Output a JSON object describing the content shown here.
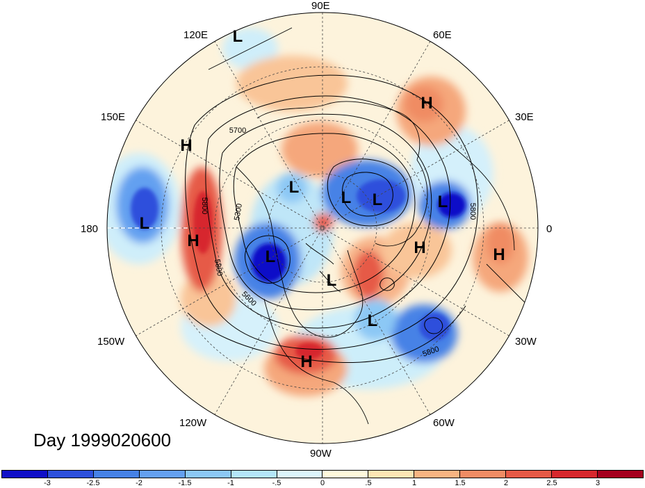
{
  "title": "Day 1999020600",
  "longitude_labels": [
    {
      "text": "90E"
    },
    {
      "text": "60E"
    },
    {
      "text": "30E"
    },
    {
      "text": "0"
    },
    {
      "text": "30W"
    },
    {
      "text": "60W"
    },
    {
      "text": "90W"
    },
    {
      "text": "120W"
    },
    {
      "text": "150W"
    },
    {
      "text": "180"
    },
    {
      "text": "150E"
    },
    {
      "text": "120E"
    }
  ],
  "pressure_centers": [
    {
      "type": "L"
    },
    {
      "type": "H"
    },
    {
      "type": "L"
    },
    {
      "type": "L"
    },
    {
      "type": "L"
    },
    {
      "type": "H"
    },
    {
      "type": "H"
    },
    {
      "type": "L"
    },
    {
      "type": "H"
    },
    {
      "type": "H"
    },
    {
      "type": "L"
    },
    {
      "type": "L"
    },
    {
      "type": "L"
    },
    {
      "type": "L"
    },
    {
      "type": "H"
    }
  ],
  "contour_labels": [
    "5700",
    "5300",
    "5800",
    "5800",
    "5600",
    "5800",
    "5800"
  ],
  "colorbar": {
    "colors": [
      "#1010c8",
      "#2d50dc",
      "#4682e6",
      "#64a0f0",
      "#8cc8f5",
      "#b4e6fa",
      "#dcf5fc",
      "#fffadc",
      "#fde6b4",
      "#f8b482",
      "#f08c64",
      "#e65a46",
      "#d7282d",
      "#a5001e"
    ],
    "ticks": [
      "-3",
      "-2.5",
      "-2",
      "-1.5",
      "-1",
      "-.5",
      "0",
      ".5",
      "1",
      "1.5",
      "2",
      "2.5",
      "3"
    ]
  }
}
